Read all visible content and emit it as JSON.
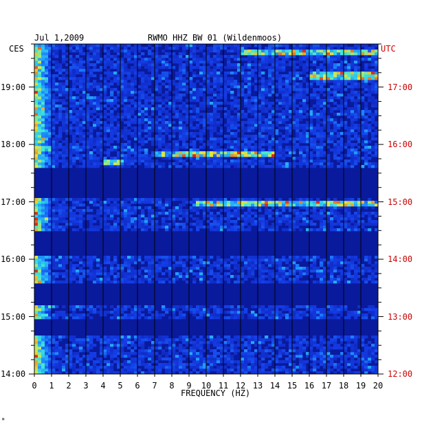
{
  "header": {
    "date": "Jul 1,2009",
    "station": "RWMO HHZ BW 01 (Wildenmoos)",
    "left_zone": "CES",
    "right_zone": "UTC"
  },
  "footer_mark": "*",
  "colors": {
    "background": "#0a1a9c",
    "gap": "#0a1070",
    "left_text": "#000000",
    "right_text": "#cc0000"
  },
  "chart_data": {
    "type": "heatmap",
    "xlabel": "FREQUENCY (HZ)",
    "ylabel": "",
    "xlim": [
      0,
      20
    ],
    "x_ticks": [
      "0",
      "1",
      "2",
      "3",
      "4",
      "5",
      "6",
      "7",
      "8",
      "9",
      "10",
      "11",
      "12",
      "13",
      "14",
      "15",
      "16",
      "17",
      "18",
      "19",
      "20"
    ],
    "left_time_labels": [
      "19:00",
      "18:00",
      "17:00",
      "16:00",
      "15:00",
      "14:00"
    ],
    "right_time_labels": [
      "17:00",
      "16:00",
      "15:00",
      "14:00",
      "13:00",
      "12:00"
    ],
    "left_time_hours": [
      19,
      18,
      17,
      16,
      15,
      14
    ],
    "time_range_ces_hours": [
      14.0,
      19.75
    ],
    "grid": true,
    "data_gaps_ces": [
      [
        17.05,
        17.6
      ],
      [
        16.05,
        16.5
      ],
      [
        15.2,
        15.6
      ],
      [
        14.65,
        14.95
      ]
    ],
    "bright_bands": [
      {
        "time": 17.85,
        "f_start": 7,
        "f_end": 14
      },
      {
        "time": 19.6,
        "f_start": 12,
        "f_end": 20
      },
      {
        "time": 19.2,
        "f_start": 16,
        "f_end": 20
      },
      {
        "time": 16.95,
        "f_start": 9.5,
        "f_end": 20
      },
      {
        "time": 17.7,
        "f_start": 4.1,
        "f_end": 5.2
      }
    ]
  }
}
